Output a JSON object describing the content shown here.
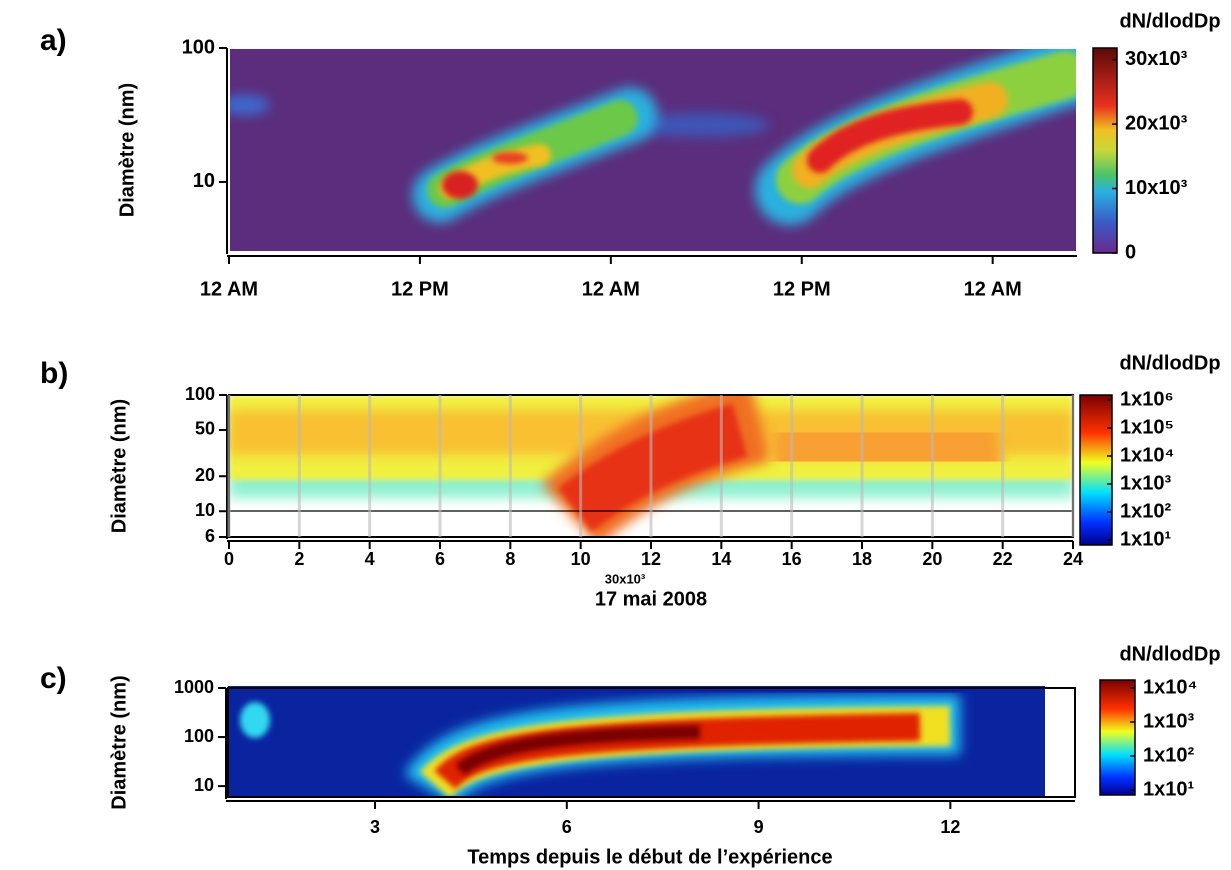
{
  "chart_data": [
    {
      "type": "heatmap",
      "panel": "a)",
      "ylabel": "Diamètre (nm)",
      "ylog": true,
      "ylim": [
        3,
        100
      ],
      "yticks": [
        10,
        100
      ],
      "xlim": [
        0,
        53.3
      ],
      "xticks": [
        {
          "value": 0,
          "label": "12 AM"
        },
        {
          "value": 12,
          "label": "12 PM"
        },
        {
          "value": 24,
          "label": "12 AM"
        },
        {
          "value": 36,
          "label": "12 PM"
        },
        {
          "value": 48,
          "label": "12 AM"
        }
      ],
      "colorbar": {
        "label": "dN/dlodDp",
        "log": false,
        "lim": [
          0,
          31800
        ],
        "ticks": [
          0,
          {
            "value": 10000,
            "label": "10x10³"
          },
          {
            "value": 20000,
            "label": "20x10³"
          },
          {
            "value": 30000,
            "label": "30x10³"
          }
        ]
      }
    },
    {
      "type": "heatmap",
      "panel": "b)",
      "ylabel": "Diamètre (nm)",
      "ylog": true,
      "ylim": [
        6,
        100
      ],
      "yticks": [
        6,
        10,
        20,
        50,
        100
      ],
      "xlim": [
        0,
        24
      ],
      "xticks": [
        0,
        2,
        4,
        6,
        8,
        10,
        12,
        14,
        16,
        18,
        20,
        22,
        24
      ],
      "xlabel": "17 mai 2008",
      "annotation": "30x10³",
      "grid": true,
      "colorbar": {
        "label": "dN/dlodDp",
        "log": true,
        "lim": [
          10,
          1000000
        ],
        "ticks": [
          {
            "value": 10,
            "label": "1x10¹"
          },
          {
            "value": 100,
            "label": "1x10²"
          },
          {
            "value": 1000,
            "label": "1x10³"
          },
          {
            "value": 10000,
            "label": "1x10⁴"
          },
          {
            "value": 100000,
            "label": "1x10⁵"
          },
          {
            "value": 1000000,
            "label": "1x10⁶"
          }
        ]
      }
    },
    {
      "type": "heatmap",
      "panel": "c)",
      "ylabel": "Diamètre (nm)",
      "ylog": true,
      "ylim": [
        6,
        1000
      ],
      "yticks": [
        10,
        100,
        1000
      ],
      "xlim": [
        0.7,
        13.95
      ],
      "xticks": [
        3,
        6,
        9,
        12
      ],
      "xlabel": "Temps depuis le début de l’expérience",
      "colorbar": {
        "label": "dN/dlodDp",
        "log": true,
        "lim": [
          10,
          10000
        ],
        "ticks": [
          {
            "value": 10,
            "label": "1x10¹"
          },
          {
            "value": 100,
            "label": "1x10²"
          },
          {
            "value": 1000,
            "label": "1x10³"
          },
          {
            "value": 10000,
            "label": "1x10⁴"
          }
        ]
      }
    }
  ]
}
